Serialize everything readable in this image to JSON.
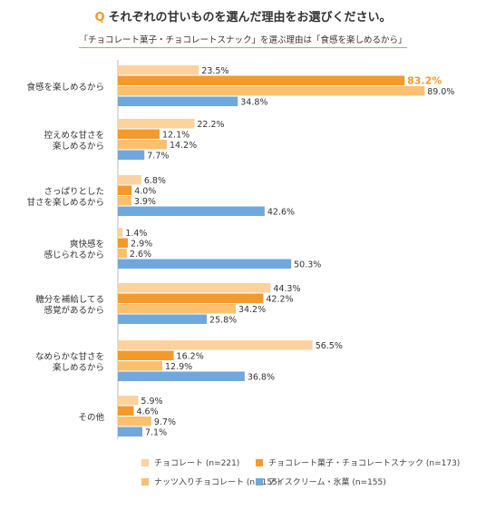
{
  "title": {
    "q_mark": "Q",
    "text": "それぞれの甘いものを選んだ理由をお選びください。"
  },
  "subtitle": "「チョコレート菓子・チョコレートスナック」を選ぶ理由は「食感を楽しめるから」",
  "colors": {
    "series": [
      "#fcd29f",
      "#f39a2b",
      "#fbc06e",
      "#6fa8dc"
    ],
    "highlight_label": "#f39a2b",
    "label_text": "#333333"
  },
  "chart_data": {
    "type": "bar",
    "orientation": "horizontal",
    "categories": [
      [
        "食感を楽しめるから"
      ],
      [
        "控えめな甘さを",
        "楽しめるから"
      ],
      [
        "さっぱりとした",
        "甘さを楽しめるから"
      ],
      [
        "爽快感を",
        "感じられるから"
      ],
      [
        "糖分を補給してる",
        "感覚があるから"
      ],
      [
        "なめらかな甘さを",
        "楽しめるから"
      ],
      [
        "その他"
      ]
    ],
    "series": [
      {
        "name": "チョコレート (n=221)",
        "values": [
          23.5,
          22.2,
          6.8,
          1.4,
          44.3,
          56.5,
          5.9
        ]
      },
      {
        "name": "チョコレート菓子・チョコレートスナック (n=173)",
        "values": [
          83.2,
          12.1,
          4.0,
          2.9,
          42.2,
          16.2,
          4.6
        ]
      },
      {
        "name": "ナッツ入りチョコレート (n=155)",
        "values": [
          89.0,
          14.2,
          3.9,
          2.6,
          34.2,
          12.9,
          9.7
        ]
      },
      {
        "name": "アイスクリーム・氷菓 (n=155)",
        "values": [
          34.8,
          7.7,
          42.6,
          50.3,
          25.8,
          36.8,
          7.1
        ]
      }
    ],
    "value_suffix": "%",
    "highlighted": {
      "series": 1,
      "category": 0
    },
    "xlim": [
      0,
      100
    ]
  }
}
